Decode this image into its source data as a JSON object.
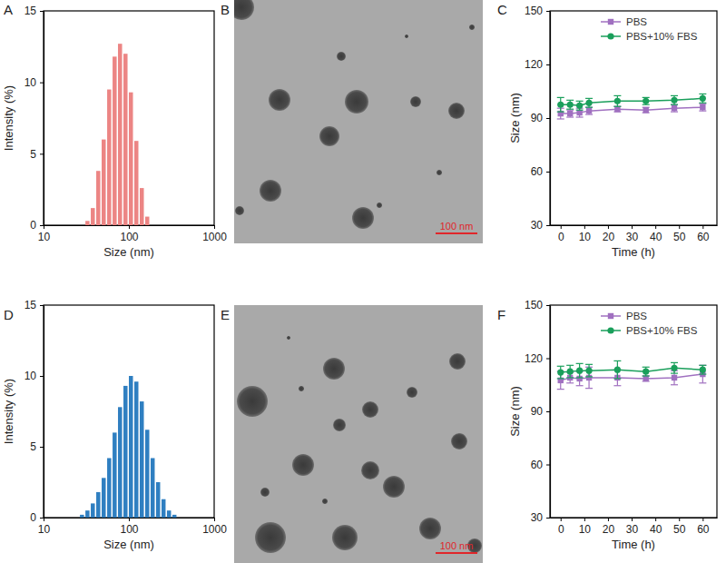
{
  "chart_data": [
    {
      "panel": "A",
      "type": "bar",
      "log": "x",
      "x_label": "Size (nm)",
      "y_label": "Intensity (%)",
      "x": [
        32.7,
        37.8,
        43.8,
        50.7,
        58.8,
        68.1,
        78.8,
        91.3,
        105.7,
        122.4,
        141.8,
        164.2
      ],
      "values": [
        0.3,
        1.2,
        3.8,
        6.0,
        9.5,
        11.8,
        12.7,
        12.0,
        9.3,
        5.9,
        2.6,
        0.6
      ],
      "color": "#ec8584",
      "xlim": [
        10,
        1000
      ],
      "xticks": [
        10,
        100,
        1000
      ],
      "ylim": [
        0,
        15
      ],
      "yticks": [
        0,
        5,
        10,
        15
      ],
      "grid": false
    },
    {
      "panel": "B",
      "type": "image",
      "scale_bar": "100 nm"
    },
    {
      "panel": "C",
      "type": "line",
      "x_label": "Time (h)",
      "y_label": "Size (nm)",
      "x": [
        0,
        4,
        8,
        12,
        24,
        36,
        48,
        60
      ],
      "series": [
        {
          "name": "PBS",
          "color": "#a070c0",
          "marker": "square",
          "values": [
            92.5,
            92.5,
            93,
            94,
            95,
            94.5,
            95.5,
            96
          ],
          "errors": [
            3,
            2,
            2.5,
            2,
            1.5,
            1.5,
            2,
            2
          ]
        },
        {
          "name": "PBS+10% FBS",
          "color": "#1a9f5b",
          "marker": "circle",
          "values": [
            97.5,
            97.5,
            97,
            98.5,
            99.5,
            99.5,
            100,
            101
          ],
          "errors": [
            4,
            2.5,
            2.5,
            2.5,
            3,
            2,
            2.5,
            2.5
          ]
        }
      ],
      "xlim": [
        -4.5,
        66
      ],
      "xticks": [
        0,
        10,
        20,
        30,
        40,
        50,
        60
      ],
      "ylim": [
        30,
        150
      ],
      "yticks": [
        30,
        60,
        90,
        120,
        150
      ],
      "legend": "upper right",
      "grid": false
    },
    {
      "panel": "D",
      "type": "bar",
      "log": "x",
      "x_label": "Size (nm)",
      "y_label": "Intensity (%)",
      "x": [
        28.2,
        32.7,
        37.8,
        43.8,
        50.7,
        58.8,
        68.1,
        78.8,
        91.3,
        105.7,
        122.4,
        141.8,
        164.2,
        190.1,
        220.2,
        255.0,
        295.3,
        342.0
      ],
      "values": [
        0.2,
        0.5,
        1.0,
        1.8,
        2.8,
        4.2,
        6.0,
        7.8,
        9.3,
        10.0,
        9.6,
        8.2,
        6.2,
        4.2,
        2.5,
        1.3,
        0.5,
        0.2
      ],
      "color": "#2f7fc1",
      "xlim": [
        10,
        1000
      ],
      "xticks": [
        10,
        100,
        1000
      ],
      "ylim": [
        0,
        15
      ],
      "yticks": [
        0,
        5,
        10,
        15
      ],
      "grid": false
    },
    {
      "panel": "E",
      "type": "image",
      "scale_bar": "100 nm"
    },
    {
      "panel": "F",
      "type": "line",
      "x_label": "Time (h)",
      "y_label": "Size (nm)",
      "x": [
        0,
        4,
        8,
        12,
        24,
        36,
        48,
        60
      ],
      "series": [
        {
          "name": "PBS",
          "color": "#a070c0",
          "marker": "square",
          "values": [
            107.5,
            109,
            108.5,
            109,
            109,
            108.5,
            109,
            111
          ],
          "errors": [
            5,
            3,
            4,
            6,
            4.5,
            1.5,
            4,
            5
          ]
        },
        {
          "name": "PBS+10% FBS",
          "color": "#1a9f5b",
          "marker": "circle",
          "values": [
            112,
            112.5,
            113,
            113,
            113.5,
            112.5,
            114.5,
            113.5
          ],
          "errors": [
            3.5,
            3.5,
            4,
            3.5,
            5,
            2.5,
            3,
            2.5
          ]
        }
      ],
      "xlim": [
        -4.5,
        66
      ],
      "xticks": [
        0,
        10,
        20,
        30,
        40,
        50,
        60
      ],
      "ylim": [
        30,
        150
      ],
      "yticks": [
        30,
        60,
        90,
        120,
        150
      ],
      "legend": "upper right",
      "grid": false
    }
  ]
}
